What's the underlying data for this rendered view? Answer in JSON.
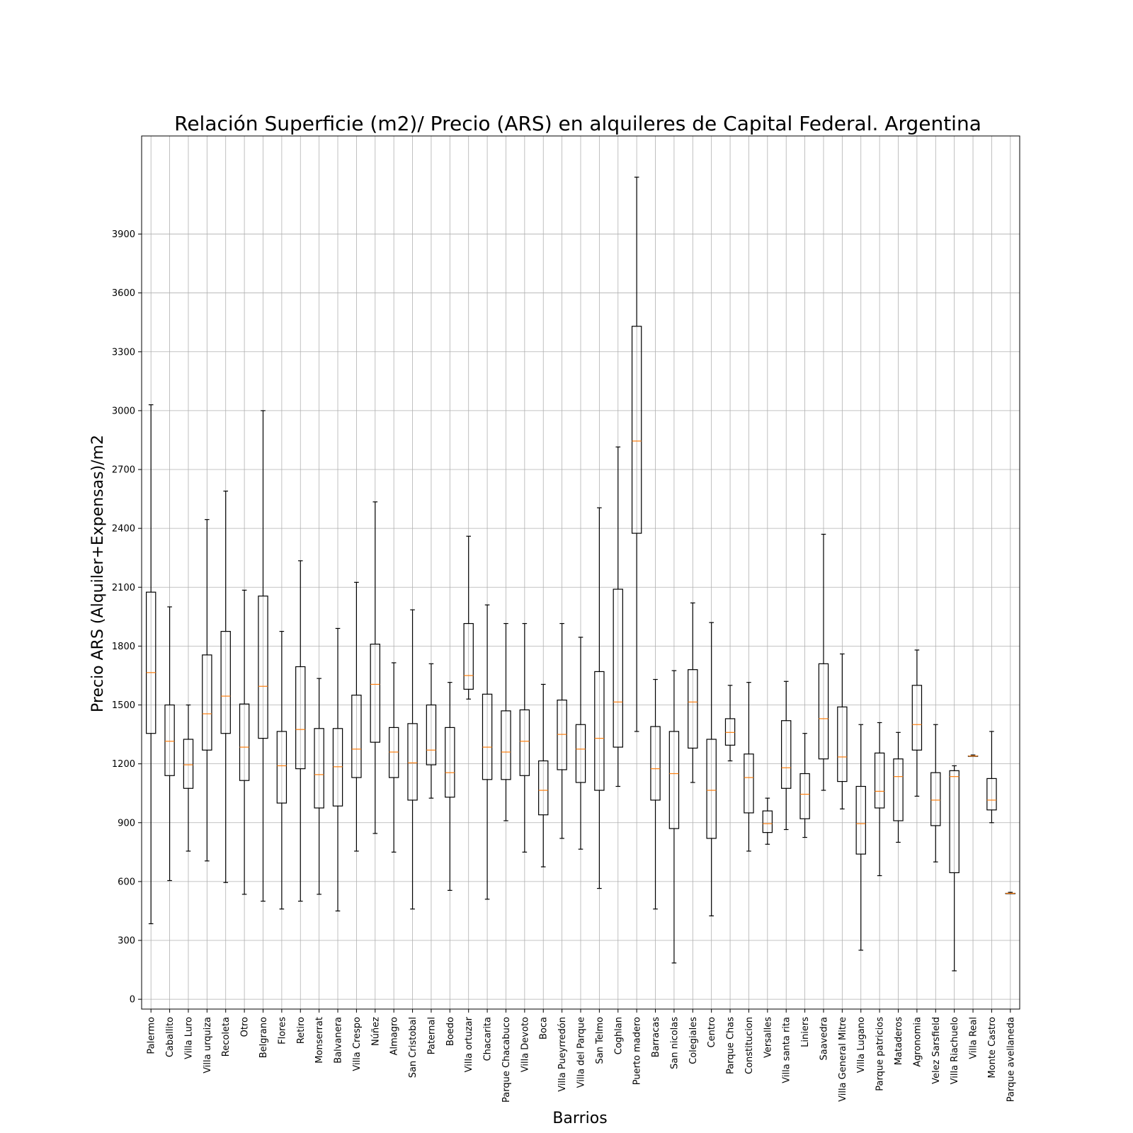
{
  "chart_data": {
    "type": "boxplot",
    "title": "Relación Superficie (m2)/ Precio (ARS) en alquileres de Capital Federal. Argentina",
    "xlabel": "Barrios",
    "ylabel": "Precio ARS (Alquiler+Expensas)/m2",
    "ylim": [
      -50,
      4400
    ],
    "yticks": [
      0,
      300,
      600,
      900,
      1200,
      1500,
      1800,
      2100,
      2400,
      2700,
      3000,
      3300,
      3600,
      3900
    ],
    "grid": true,
    "box_color": "#000000",
    "median_color": "#ff7f0e",
    "categories": [
      "Palermo",
      "Caballito",
      "Villa Luro",
      "Villa urquiza",
      "Recoleta",
      "Otro",
      "Belgrano",
      "Flores",
      "Retiro",
      "Monserrat",
      "Balvanera",
      "Villa Crespo",
      "Núñez",
      "Almagro",
      "San Cristobal",
      "Paternal",
      "Boedo",
      "Villa ortuzar",
      "Chacarita",
      "Parque Chacabuco",
      "Villa Devoto",
      "Boca",
      "Villa Pueyrredón",
      "Villa del Parque",
      "San Telmo",
      "Coghlan",
      "Puerto madero",
      "Barracas",
      "San nicolas",
      "Colegiales",
      "Centro",
      "Parque Chas",
      "Constitucion",
      "Versalles",
      "Villa santa rita",
      "Liniers",
      "Saavedra",
      "Villa General Mitre",
      "Villa Lugano",
      "Parque patricios",
      "Mataderos",
      "Agronomia",
      "Velez Sarsfield",
      "Villa Riachuelo",
      "Villa Real",
      "Monte Castro",
      "Parque avellaneda"
    ],
    "series": [
      {
        "whisker_low": [
          385,
          605,
          755,
          705,
          595,
          535,
          500,
          460,
          500,
          535,
          450,
          755,
          845,
          750,
          460,
          1025,
          555,
          1530,
          510,
          910,
          750,
          675,
          820,
          765,
          565,
          1085,
          1365,
          460,
          185,
          1105,
          425,
          1215,
          755,
          790,
          865,
          825,
          1065,
          970,
          250,
          630,
          800,
          1035,
          700,
          145,
          1240,
          900,
          540
        ],
        "q1": [
          1355,
          1140,
          1075,
          1270,
          1355,
          1115,
          1330,
          1000,
          1175,
          975,
          985,
          1130,
          1310,
          1130,
          1015,
          1195,
          1030,
          1580,
          1120,
          1120,
          1140,
          940,
          1170,
          1105,
          1065,
          1285,
          2375,
          1015,
          870,
          1280,
          820,
          1295,
          950,
          850,
          1075,
          920,
          1225,
          1110,
          740,
          975,
          910,
          1270,
          885,
          645,
          1240,
          965,
          540
        ],
        "median": [
          1665,
          1315,
          1195,
          1455,
          1545,
          1285,
          1595,
          1190,
          1375,
          1145,
          1185,
          1275,
          1605,
          1260,
          1205,
          1270,
          1155,
          1650,
          1285,
          1260,
          1315,
          1065,
          1350,
          1275,
          1330,
          1515,
          2845,
          1175,
          1150,
          1515,
          1065,
          1360,
          1130,
          895,
          1180,
          1045,
          1430,
          1235,
          895,
          1060,
          1135,
          1400,
          1015,
          1135,
          1240,
          1015,
          540
        ],
        "q3": [
          2075,
          1500,
          1325,
          1755,
          1875,
          1505,
          2055,
          1365,
          1695,
          1380,
          1380,
          1550,
          1810,
          1385,
          1405,
          1500,
          1385,
          1915,
          1555,
          1470,
          1475,
          1215,
          1525,
          1400,
          1670,
          2090,
          3430,
          1390,
          1365,
          1680,
          1325,
          1430,
          1250,
          960,
          1420,
          1150,
          1710,
          1490,
          1085,
          1255,
          1225,
          1600,
          1155,
          1165,
          1240,
          1125,
          540
        ],
        "whisker_high": [
          3030,
          2000,
          1500,
          2445,
          2590,
          2085,
          3000,
          1875,
          2235,
          1635,
          1890,
          2125,
          2535,
          1715,
          1985,
          1710,
          1615,
          2360,
          2010,
          1915,
          1915,
          1605,
          1915,
          1845,
          2505,
          2815,
          4190,
          1630,
          1675,
          2020,
          1920,
          1600,
          1615,
          1025,
          1620,
          1355,
          2370,
          1760,
          1400,
          1410,
          1360,
          1780,
          1400,
          1190,
          1245,
          1365,
          545
        ]
      }
    ]
  }
}
